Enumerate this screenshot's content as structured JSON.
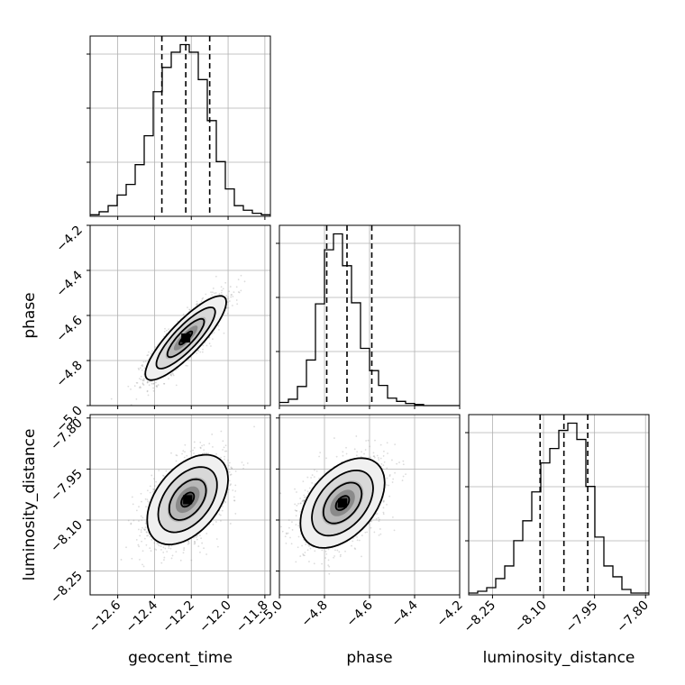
{
  "chart_data": {
    "type": "corner",
    "parameters": [
      "geocent_time",
      "phase",
      "luminosity_distance"
    ],
    "ranges": {
      "geocent_time": [
        -12.75,
        -11.77
      ],
      "phase": [
        -5.0,
        -4.2
      ],
      "luminosity_distance": [
        -8.32,
        -7.79
      ]
    },
    "ticks": {
      "geocent_time": {
        "values": [
          -12.6,
          -12.4,
          -12.2,
          -12.0,
          -11.8
        ],
        "labels": [
          "−12.6",
          "−12.4",
          "−12.2",
          "−12.0",
          "−11.8"
        ]
      },
      "phase": {
        "values": [
          -5.0,
          -4.8,
          -4.6,
          -4.4,
          -4.2
        ],
        "labels": [
          "−5.0",
          "−4.8",
          "−4.6",
          "−4.4",
          "−4.2"
        ]
      },
      "luminosity_distance": {
        "values": [
          -8.25,
          -8.1,
          -7.95,
          -7.8
        ],
        "labels": [
          "−8.25",
          "−8.10",
          "−7.95",
          "−7.80"
        ]
      }
    },
    "quantiles": {
      "geocent_time": [
        -12.36,
        -12.23,
        -12.1
      ],
      "phase": [
        -4.79,
        -4.7,
        -4.59
      ],
      "luminosity_distance": [
        -8.11,
        -8.04,
        -7.97
      ]
    },
    "histograms": {
      "geocent_time": [
        1,
        3,
        7,
        14,
        21,
        34,
        53,
        82,
        98,
        108,
        113,
        108,
        90,
        63,
        36,
        18,
        7,
        4,
        2,
        1
      ],
      "phase": [
        3,
        6,
        18,
        43,
        96,
        147,
        162,
        132,
        97,
        54,
        33,
        19,
        7,
        4,
        2,
        1,
        0,
        0,
        0,
        0
      ],
      "luminosity_distance": [
        1,
        2,
        4,
        9,
        16,
        30,
        41,
        57,
        73,
        81,
        91,
        95,
        86,
        60,
        32,
        16,
        10,
        3,
        1,
        1
      ]
    },
    "scatter_2d": [
      {
        "x": "geocent_time",
        "y": "phase",
        "mean": [
          -12.23,
          -4.7
        ],
        "sd": [
          0.1,
          0.085
        ],
        "rho": 0.85
      },
      {
        "x": "geocent_time",
        "y": "luminosity_distance",
        "mean": [
          -12.22,
          -8.04
        ],
        "sd": [
          0.1,
          0.06
        ],
        "rho": 0.45
      },
      {
        "x": "phase",
        "y": "luminosity_distance",
        "mean": [
          -4.72,
          -8.05
        ],
        "sd": [
          0.085,
          0.06
        ],
        "rho": 0.45
      }
    ],
    "grid": true
  }
}
